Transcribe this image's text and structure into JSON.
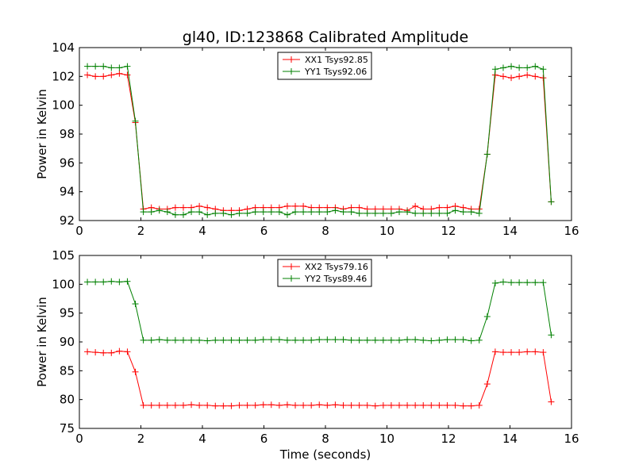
{
  "figure": {
    "title": "gl40, ID:123868 Calibrated Amplitude",
    "xlabel": "Time (seconds)"
  },
  "chart_data": [
    {
      "type": "line",
      "title": "gl40, ID:123868 Calibrated Amplitude",
      "xlabel": "",
      "ylabel": "Power in Kelvin",
      "xlim": [
        0,
        16
      ],
      "ylim": [
        92,
        104
      ],
      "xticks": [
        "0",
        "2",
        "4",
        "6",
        "8",
        "10",
        "12",
        "14",
        "16"
      ],
      "yticks": [
        "92",
        "94",
        "96",
        "98",
        "100",
        "102",
        "104"
      ],
      "grid": false,
      "legend": "top-center",
      "x": [
        0.26,
        0.52,
        0.78,
        1.04,
        1.3,
        1.56,
        1.82,
        2.08,
        2.34,
        2.6,
        2.86,
        3.12,
        3.38,
        3.64,
        3.9,
        4.16,
        4.42,
        4.68,
        4.94,
        5.2,
        5.46,
        5.72,
        5.98,
        6.24,
        6.5,
        6.76,
        7.02,
        7.28,
        7.54,
        7.8,
        8.06,
        8.32,
        8.58,
        8.84,
        9.1,
        9.36,
        9.62,
        9.88,
        10.14,
        10.4,
        10.66,
        10.92,
        11.18,
        11.44,
        11.7,
        11.96,
        12.22,
        12.48,
        12.74,
        13.0,
        13.26,
        13.52,
        13.78,
        14.04,
        14.3,
        14.56,
        14.82,
        15.08,
        15.34
      ],
      "series": [
        {
          "name": "XX1 Tsys92.85",
          "color": "#ff0000",
          "values": [
            102.1,
            102.0,
            102.0,
            102.1,
            102.2,
            102.1,
            98.8,
            92.8,
            92.9,
            92.8,
            92.8,
            92.9,
            92.9,
            92.9,
            93.0,
            92.9,
            92.8,
            92.7,
            92.7,
            92.7,
            92.8,
            92.9,
            92.9,
            92.9,
            92.9,
            93.0,
            93.0,
            93.0,
            92.9,
            92.9,
            92.9,
            92.9,
            92.8,
            92.9,
            92.9,
            92.8,
            92.8,
            92.8,
            92.8,
            92.8,
            92.7,
            93.0,
            92.8,
            92.8,
            92.9,
            92.9,
            93.0,
            92.9,
            92.8,
            92.8,
            96.6,
            102.1,
            102.0,
            101.9,
            102.0,
            102.1,
            102.0,
            101.9,
            93.3
          ]
        },
        {
          "name": "YY1 Tsys92.06",
          "color": "#008000",
          "values": [
            102.7,
            102.7,
            102.7,
            102.6,
            102.6,
            102.7,
            98.9,
            92.6,
            92.6,
            92.7,
            92.6,
            92.4,
            92.4,
            92.6,
            92.6,
            92.4,
            92.5,
            92.5,
            92.4,
            92.5,
            92.5,
            92.6,
            92.6,
            92.6,
            92.6,
            92.4,
            92.6,
            92.6,
            92.6,
            92.6,
            92.6,
            92.7,
            92.6,
            92.6,
            92.5,
            92.5,
            92.5,
            92.5,
            92.5,
            92.6,
            92.6,
            92.5,
            92.5,
            92.5,
            92.5,
            92.5,
            92.7,
            92.6,
            92.6,
            92.5,
            96.6,
            102.5,
            102.6,
            102.7,
            102.6,
            102.6,
            102.7,
            102.5,
            93.3
          ]
        }
      ]
    },
    {
      "type": "line",
      "title": "",
      "xlabel": "Time (seconds)",
      "ylabel": "Power in Kelvin",
      "xlim": [
        0,
        16
      ],
      "ylim": [
        75,
        105
      ],
      "xticks": [
        "0",
        "2",
        "4",
        "6",
        "8",
        "10",
        "12",
        "14",
        "16"
      ],
      "yticks": [
        "75",
        "80",
        "85",
        "90",
        "95",
        "100",
        "105"
      ],
      "grid": false,
      "legend": "top-center",
      "x": [
        0.26,
        0.52,
        0.78,
        1.04,
        1.3,
        1.56,
        1.82,
        2.08,
        2.34,
        2.6,
        2.86,
        3.12,
        3.38,
        3.64,
        3.9,
        4.16,
        4.42,
        4.68,
        4.94,
        5.2,
        5.46,
        5.72,
        5.98,
        6.24,
        6.5,
        6.76,
        7.02,
        7.28,
        7.54,
        7.8,
        8.06,
        8.32,
        8.58,
        8.84,
        9.1,
        9.36,
        9.62,
        9.88,
        10.14,
        10.4,
        10.66,
        10.92,
        11.18,
        11.44,
        11.7,
        11.96,
        12.22,
        12.48,
        12.74,
        13.0,
        13.26,
        13.52,
        13.78,
        14.04,
        14.3,
        14.56,
        14.82,
        15.08,
        15.34
      ],
      "series": [
        {
          "name": "XX2 Tsys79.16",
          "color": "#ff0000",
          "values": [
            88.3,
            88.2,
            88.1,
            88.1,
            88.4,
            88.3,
            84.8,
            79.0,
            79.0,
            79.0,
            79.0,
            79.0,
            79.0,
            79.1,
            79.0,
            79.0,
            78.9,
            78.9,
            78.9,
            79.0,
            79.0,
            79.0,
            79.1,
            79.1,
            79.0,
            79.1,
            79.0,
            79.0,
            79.0,
            79.1,
            79.0,
            79.1,
            79.0,
            79.0,
            79.0,
            79.0,
            78.9,
            79.0,
            79.0,
            79.0,
            79.0,
            79.0,
            79.0,
            79.0,
            79.0,
            79.0,
            79.0,
            78.9,
            78.9,
            79.0,
            82.7,
            88.3,
            88.2,
            88.2,
            88.2,
            88.3,
            88.3,
            88.2,
            79.6
          ]
        },
        {
          "name": "YY2 Tsys89.46",
          "color": "#008000",
          "values": [
            100.4,
            100.4,
            100.4,
            100.5,
            100.4,
            100.5,
            96.6,
            90.3,
            90.3,
            90.4,
            90.3,
            90.3,
            90.3,
            90.3,
            90.3,
            90.2,
            90.3,
            90.3,
            90.3,
            90.3,
            90.3,
            90.3,
            90.4,
            90.4,
            90.4,
            90.3,
            90.3,
            90.3,
            90.3,
            90.4,
            90.4,
            90.4,
            90.4,
            90.3,
            90.3,
            90.3,
            90.3,
            90.3,
            90.3,
            90.3,
            90.4,
            90.4,
            90.3,
            90.2,
            90.3,
            90.4,
            90.4,
            90.4,
            90.2,
            90.3,
            94.4,
            100.2,
            100.4,
            100.3,
            100.3,
            100.3,
            100.3,
            100.3,
            91.2
          ]
        }
      ]
    }
  ]
}
